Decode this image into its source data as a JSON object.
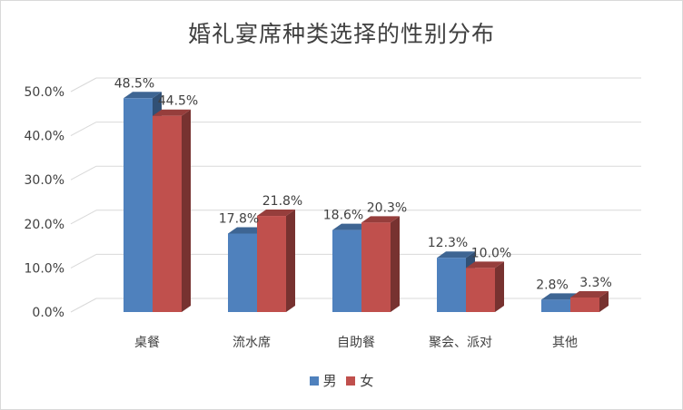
{
  "chart_data": {
    "type": "bar",
    "title": "婚礼宴席种类选择的性别分布",
    "categories": [
      "桌餐",
      "流水席",
      "自助餐",
      "聚会、派对",
      "其他"
    ],
    "series": [
      {
        "name": "男",
        "values": [
          48.5,
          17.8,
          18.6,
          12.3,
          2.8
        ],
        "labels": [
          "48.5%",
          "17.8%",
          "18.6%",
          "12.3%",
          "2.8%"
        ],
        "color": "#4f81bd"
      },
      {
        "name": "女",
        "values": [
          44.5,
          21.8,
          20.3,
          10.0,
          3.3
        ],
        "labels": [
          "44.5%",
          "21.8%",
          "20.3%",
          "10.0%",
          "3.3%"
        ],
        "color": "#c0504d"
      }
    ],
    "yticks": [
      "0.0%",
      "10.0%",
      "20.0%",
      "30.0%",
      "40.0%",
      "50.0%"
    ],
    "ylim": [
      0,
      50
    ],
    "three_d": true,
    "grid": true,
    "legend_position": "bottom"
  }
}
